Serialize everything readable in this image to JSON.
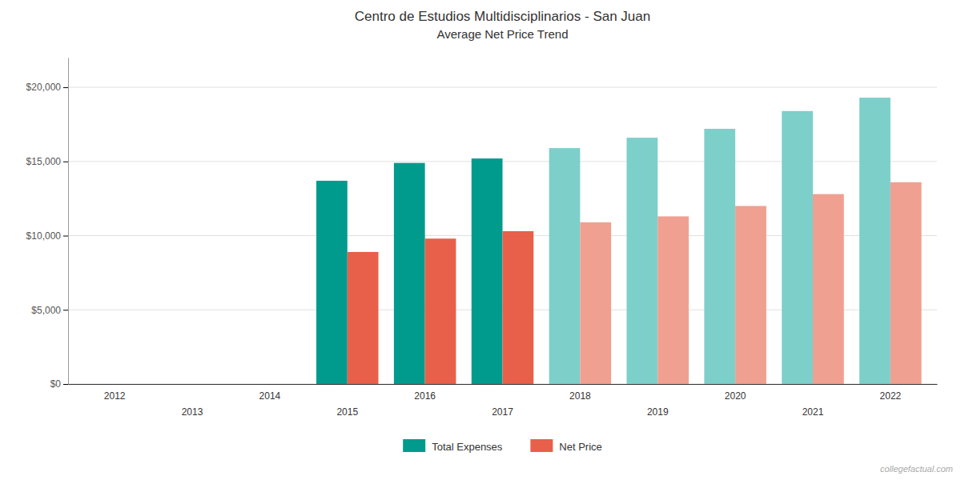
{
  "chart_data": {
    "type": "bar",
    "title": "Centro de Estudios Multidisciplinarios - San Juan",
    "subtitle": "Average Net Price Trend",
    "categories": [
      2012,
      2013,
      2014,
      2015,
      2016,
      2017,
      2018,
      2019,
      2020,
      2021,
      2022
    ],
    "series": [
      {
        "name": "Total Expenses",
        "color": "#009B8D",
        "colors": [
          null,
          null,
          null,
          "#009B8D",
          "#009B8D",
          "#009B8D",
          "#7DCFCA",
          "#7DCFCA",
          "#7DCFCA",
          "#7DCFCA",
          "#7DCFCA"
        ],
        "values": [
          null,
          null,
          null,
          13700,
          14900,
          15200,
          15900,
          16600,
          17200,
          18400,
          19300
        ]
      },
      {
        "name": "Net Price",
        "color": "#E8604A",
        "colors": [
          null,
          null,
          null,
          "#E8604A",
          "#E8604A",
          "#E8604A",
          "#F0A090",
          "#F0A090",
          "#F0A090",
          "#F0A090",
          "#F0A090"
        ],
        "values": [
          null,
          null,
          null,
          8900,
          9800,
          10300,
          10900,
          11300,
          12000,
          12800,
          13600
        ]
      }
    ],
    "ylim": [
      0,
      22000
    ],
    "yticks": [
      {
        "value": 0,
        "label": "$0"
      },
      {
        "value": 5000,
        "label": "$5,000"
      },
      {
        "value": 10000,
        "label": "$10,000"
      },
      {
        "value": 15000,
        "label": "$15,000"
      },
      {
        "value": 20000,
        "label": "$20,000"
      }
    ],
    "grid": true,
    "legend": "bottom",
    "annotations": [
      "collegefactual.com"
    ]
  }
}
